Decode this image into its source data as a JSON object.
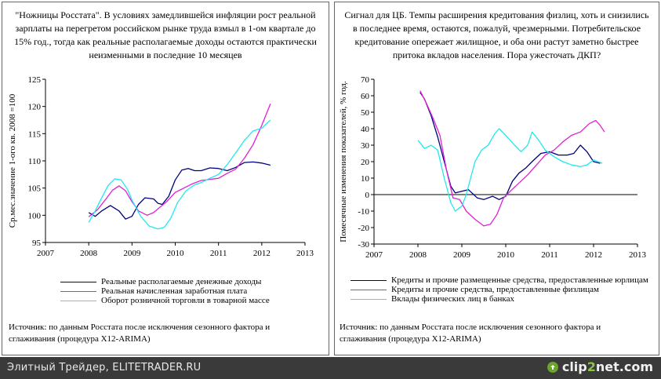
{
  "colors": {
    "navy": "#00007f",
    "magenta": "#e020d0",
    "cyan": "#20e8ee"
  },
  "chart_data": [
    {
      "type": "line",
      "title": "\"Ножницы Росстата\". В условиях замедлившейся инфляции рост реальной зарплаты на перегретом российском рынке труда взмыл в 1-ом квартале до 15% год., тогда как реальные располагаемые доходы остаются практически неизменными в последние 10 месяцев",
      "ylabel": "Ср.мес.значение 1-ого кв. 2008 =100",
      "xlabel": "",
      "xlim": [
        2007,
        2013
      ],
      "ylim": [
        95,
        125
      ],
      "x_ticks": [
        "2007",
        "2008",
        "2009",
        "2010",
        "2011",
        "2012",
        "2013"
      ],
      "y_ticks": [
        "95",
        "100",
        "105",
        "110",
        "115",
        "120",
        "125"
      ],
      "series": [
        {
          "name": "Реальные располагаемые денежные доходы",
          "color": "#00007f",
          "points": [
            [
              2008.0,
              100.5
            ],
            [
              2008.15,
              99.8
            ],
            [
              2008.3,
              100.8
            ],
            [
              2008.5,
              101.8
            ],
            [
              2008.7,
              100.8
            ],
            [
              2008.85,
              99.3
            ],
            [
              2009.0,
              99.8
            ],
            [
              2009.15,
              102.0
            ],
            [
              2009.3,
              103.2
            ],
            [
              2009.5,
              103.0
            ],
            [
              2009.6,
              102.2
            ],
            [
              2009.7,
              102.0
            ],
            [
              2009.85,
              103.5
            ],
            [
              2010.0,
              106.5
            ],
            [
              2010.15,
              108.3
            ],
            [
              2010.3,
              108.6
            ],
            [
              2010.45,
              108.2
            ],
            [
              2010.6,
              108.2
            ],
            [
              2010.8,
              108.7
            ],
            [
              2011.0,
              108.6
            ],
            [
              2011.2,
              108.2
            ],
            [
              2011.4,
              108.8
            ],
            [
              2011.6,
              109.7
            ],
            [
              2011.8,
              109.8
            ],
            [
              2012.0,
              109.6
            ],
            [
              2012.2,
              109.2
            ]
          ]
        },
        {
          "name": "Реальная начисленная заработная плата",
          "color": "#e020d0",
          "points": [
            [
              2008.0,
              99.7
            ],
            [
              2008.2,
              101.0
            ],
            [
              2008.4,
              103.0
            ],
            [
              2008.55,
              104.6
            ],
            [
              2008.7,
              105.4
            ],
            [
              2008.85,
              104.5
            ],
            [
              2009.0,
              102.5
            ],
            [
              2009.15,
              100.8
            ],
            [
              2009.35,
              100.0
            ],
            [
              2009.5,
              100.5
            ],
            [
              2009.65,
              101.5
            ],
            [
              2009.8,
              102.5
            ],
            [
              2010.0,
              104.2
            ],
            [
              2010.2,
              105.0
            ],
            [
              2010.4,
              105.8
            ],
            [
              2010.6,
              106.4
            ],
            [
              2010.8,
              106.6
            ],
            [
              2011.0,
              106.8
            ],
            [
              2011.2,
              107.7
            ],
            [
              2011.4,
              108.5
            ],
            [
              2011.6,
              110.5
            ],
            [
              2011.8,
              113.0
            ],
            [
              2012.0,
              116.5
            ],
            [
              2012.2,
              120.5
            ]
          ]
        },
        {
          "name": "Оборот розничной торговли в товарной массе",
          "color": "#20e8ee",
          "points": [
            [
              2008.0,
              98.7
            ],
            [
              2008.15,
              100.8
            ],
            [
              2008.3,
              103.2
            ],
            [
              2008.45,
              105.5
            ],
            [
              2008.6,
              106.7
            ],
            [
              2008.75,
              106.5
            ],
            [
              2008.9,
              104.7
            ],
            [
              2009.0,
              102.8
            ],
            [
              2009.2,
              99.8
            ],
            [
              2009.4,
              98.0
            ],
            [
              2009.6,
              97.5
            ],
            [
              2009.75,
              97.8
            ],
            [
              2009.9,
              99.5
            ],
            [
              2010.05,
              102.3
            ],
            [
              2010.25,
              104.5
            ],
            [
              2010.45,
              105.6
            ],
            [
              2010.6,
              106.0
            ],
            [
              2010.8,
              106.8
            ],
            [
              2011.0,
              107.5
            ],
            [
              2011.2,
              109.3
            ],
            [
              2011.4,
              111.5
            ],
            [
              2011.6,
              113.8
            ],
            [
              2011.8,
              115.5
            ],
            [
              2012.0,
              116.0
            ],
            [
              2012.2,
              117.5
            ]
          ]
        }
      ],
      "source": "Источник: по данным Росстата после исключения сезонного фактора и сглаживания (процедура X12-ARIMA)"
    },
    {
      "type": "line",
      "title": "Сигнал для ЦБ. Темпы расширения кредитования физлиц, хоть и снизились в последнее время, остаются, пожалуй, чрезмерными. Потребительское кредитование опережает жилищное, и оба они растут заметно быстрее притока вкладов населения. Пора ужесточать ДКП?",
      "ylabel": "Помесячные изменения показателей, % год.",
      "xlabel": "",
      "xlim": [
        2007,
        2013
      ],
      "ylim": [
        -30,
        70
      ],
      "x_ticks": [
        "2007",
        "2008",
        "2009",
        "2010",
        "2011",
        "2012",
        "2013"
      ],
      "y_ticks": [
        "-30",
        "-20",
        "-10",
        "0",
        "10",
        "20",
        "30",
        "40",
        "50",
        "60",
        "70"
      ],
      "series": [
        {
          "name": "Кредиты и прочие размещенные средства, предоставленные юрлицам",
          "color": "#00007f",
          "points": [
            [
              2008.05,
              62
            ],
            [
              2008.15,
              58
            ],
            [
              2008.3,
              48
            ],
            [
              2008.45,
              35
            ],
            [
              2008.6,
              20
            ],
            [
              2008.75,
              5
            ],
            [
              2008.85,
              1
            ],
            [
              2009.0,
              2
            ],
            [
              2009.15,
              3
            ],
            [
              2009.35,
              -2
            ],
            [
              2009.5,
              -3
            ],
            [
              2009.7,
              -1
            ],
            [
              2009.85,
              -3
            ],
            [
              2010.0,
              -1
            ],
            [
              2010.15,
              8
            ],
            [
              2010.3,
              13
            ],
            [
              2010.45,
              16
            ],
            [
              2010.6,
              20
            ],
            [
              2010.8,
              25
            ],
            [
              2011.0,
              26
            ],
            [
              2011.2,
              24
            ],
            [
              2011.4,
              24
            ],
            [
              2011.55,
              25
            ],
            [
              2011.7,
              30
            ],
            [
              2011.85,
              26
            ],
            [
              2012.0,
              20
            ],
            [
              2012.15,
              19
            ]
          ]
        },
        {
          "name": "Кредиты и прочие средства, предоставленные физлицам",
          "color": "#e020d0",
          "points": [
            [
              2008.05,
              63
            ],
            [
              2008.2,
              55
            ],
            [
              2008.35,
              46
            ],
            [
              2008.5,
              36
            ],
            [
              2008.65,
              15
            ],
            [
              2008.8,
              -2
            ],
            [
              2008.95,
              -3
            ],
            [
              2009.1,
              -10
            ],
            [
              2009.3,
              -15
            ],
            [
              2009.5,
              -19
            ],
            [
              2009.65,
              -18
            ],
            [
              2009.8,
              -12
            ],
            [
              2009.95,
              -2
            ],
            [
              2010.1,
              2
            ],
            [
              2010.3,
              7
            ],
            [
              2010.5,
              12
            ],
            [
              2010.7,
              18
            ],
            [
              2010.9,
              24
            ],
            [
              2011.1,
              27
            ],
            [
              2011.3,
              32
            ],
            [
              2011.5,
              36
            ],
            [
              2011.7,
              38
            ],
            [
              2011.9,
              43
            ],
            [
              2012.05,
              45
            ],
            [
              2012.15,
              42
            ],
            [
              2012.25,
              38
            ]
          ]
        },
        {
          "name": "Вклады физических лиц в банках",
          "color": "#20e8ee",
          "points": [
            [
              2008.0,
              33
            ],
            [
              2008.15,
              28
            ],
            [
              2008.3,
              30
            ],
            [
              2008.45,
              27
            ],
            [
              2008.6,
              10
            ],
            [
              2008.75,
              -5
            ],
            [
              2008.85,
              -10
            ],
            [
              2009.0,
              -7
            ],
            [
              2009.1,
              0
            ],
            [
              2009.3,
              20
            ],
            [
              2009.45,
              27
            ],
            [
              2009.6,
              30
            ],
            [
              2009.75,
              37
            ],
            [
              2009.85,
              40
            ],
            [
              2010.0,
              36
            ],
            [
              2010.2,
              30
            ],
            [
              2010.35,
              26
            ],
            [
              2010.5,
              30
            ],
            [
              2010.6,
              38
            ],
            [
              2010.75,
              33
            ],
            [
              2010.9,
              27
            ],
            [
              2011.1,
              23
            ],
            [
              2011.3,
              20
            ],
            [
              2011.5,
              18
            ],
            [
              2011.7,
              17
            ],
            [
              2011.85,
              18
            ],
            [
              2012.0,
              21
            ],
            [
              2012.2,
              19
            ]
          ]
        }
      ],
      "source": "Источник: по данным Росстата после исключения сезонного фактора и сглаживания (процедура X12-ARIMA)"
    }
  ],
  "footer": {
    "site_text": "Элитный Трейдер, ELITETRADER.RU",
    "logo_main": "clip",
    "logo_accent": "2",
    "logo_end": "net.com"
  }
}
